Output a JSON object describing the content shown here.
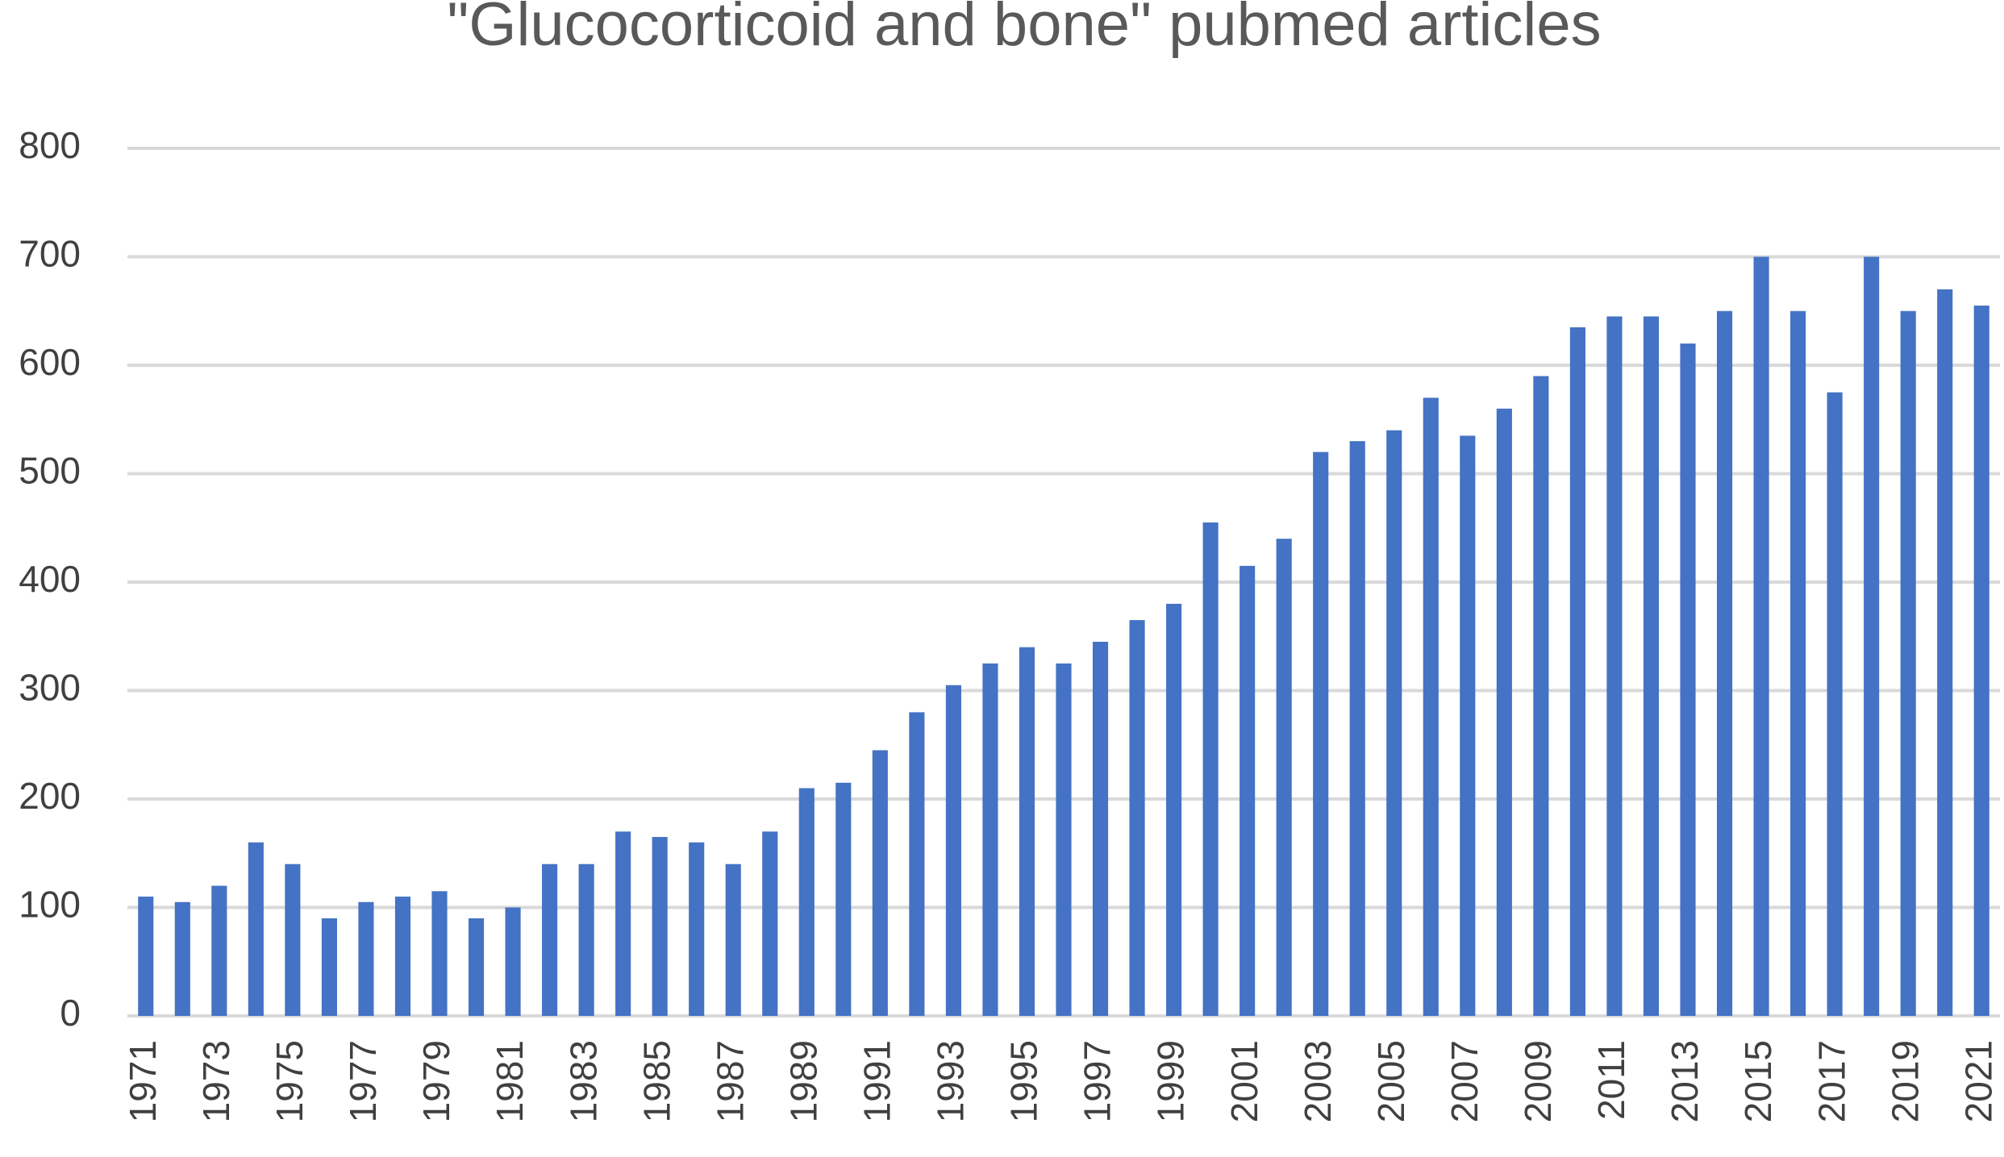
{
  "chart_data": {
    "type": "bar",
    "title": "\"Glucocorticoid and bone\" pubmed articles",
    "categories": [
      "1971",
      null,
      "1973",
      null,
      "1975",
      null,
      "1977",
      null,
      "1979",
      null,
      "1981",
      null,
      "1983",
      null,
      "1985",
      null,
      "1987",
      null,
      "1989",
      null,
      "1991",
      null,
      "1993",
      null,
      "1995",
      null,
      "1997",
      null,
      "1999",
      null,
      "2001",
      null,
      "2003",
      null,
      "2005",
      null,
      "2007",
      null,
      "2009",
      null,
      "2011",
      null,
      "2013",
      null,
      "2015",
      null,
      "2017",
      null,
      "2019",
      null,
      "2021"
    ],
    "values": [
      110,
      105,
      120,
      160,
      140,
      90,
      105,
      110,
      115,
      90,
      100,
      140,
      140,
      170,
      165,
      160,
      140,
      170,
      210,
      215,
      245,
      280,
      305,
      325,
      340,
      325,
      345,
      365,
      380,
      455,
      415,
      440,
      520,
      530,
      540,
      570,
      535,
      560,
      590,
      635,
      645,
      645,
      620,
      650,
      700,
      650,
      575,
      700,
      650,
      670,
      655
    ],
    "color": "#4472c4",
    "ylim": [
      0,
      800
    ],
    "yticks": [
      0,
      100,
      200,
      300,
      400,
      500,
      600,
      700,
      800
    ],
    "grid": true
  }
}
